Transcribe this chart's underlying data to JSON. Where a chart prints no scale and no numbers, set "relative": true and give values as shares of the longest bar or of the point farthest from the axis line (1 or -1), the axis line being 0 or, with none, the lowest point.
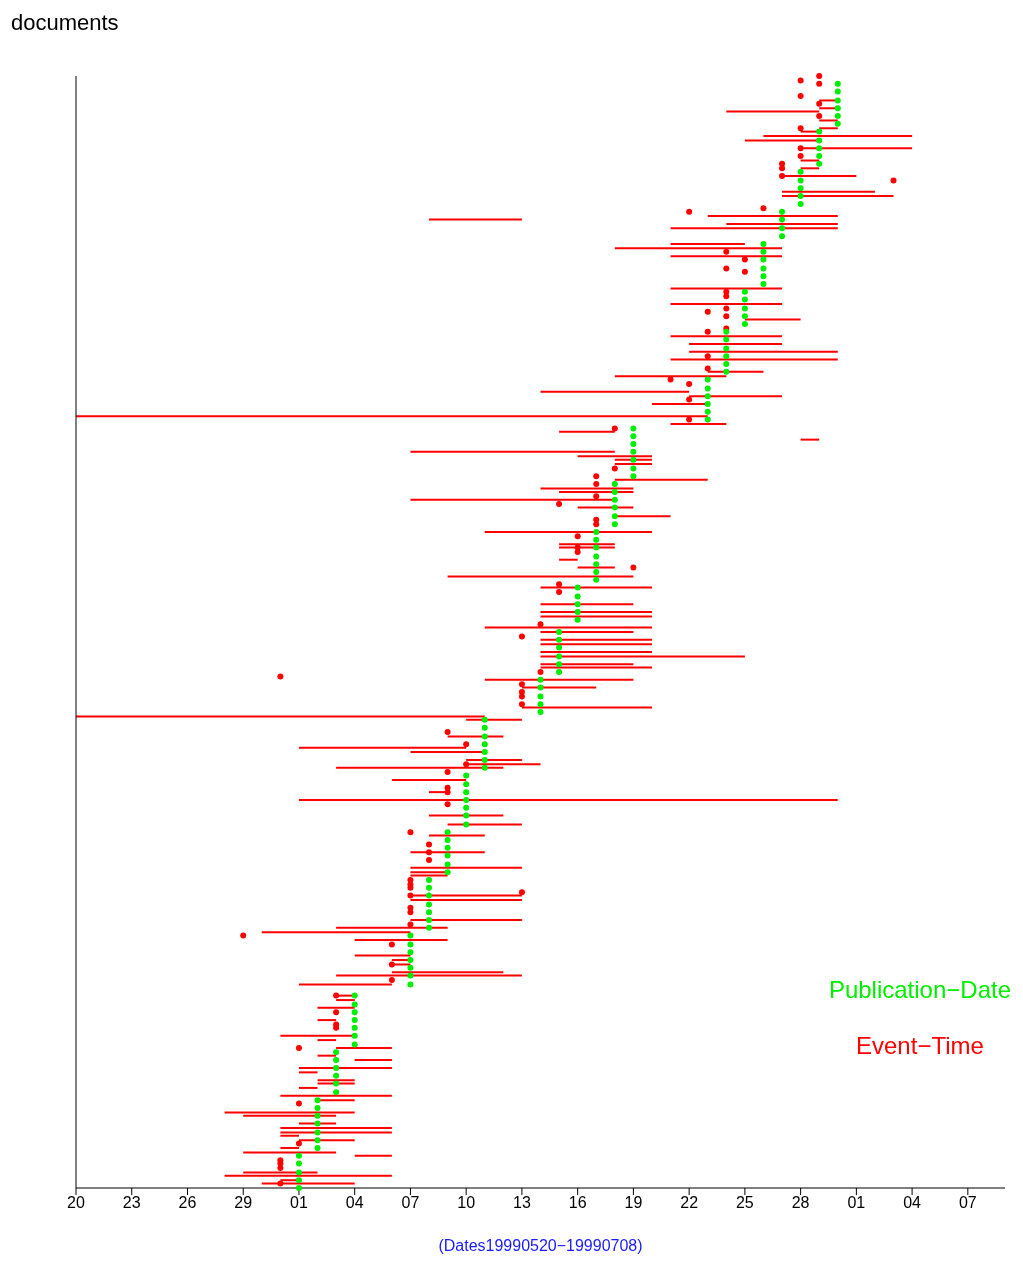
{
  "chart_data": {
    "type": "scatter",
    "ylabel": "documents",
    "xlabel": "(Dates19990520−19990708)",
    "xlim": [
      "1999-05-20",
      "1999-07-09"
    ],
    "relative": true,
    "xticks": [
      {
        "value": "1999-05-20",
        "label": "20"
      },
      {
        "value": "1999-05-23",
        "label": "23"
      },
      {
        "value": "1999-05-26",
        "label": "26"
      },
      {
        "value": "1999-05-29",
        "label": "29"
      },
      {
        "value": "1999-06-01",
        "label": "01"
      },
      {
        "value": "1999-06-04",
        "label": "04"
      },
      {
        "value": "1999-06-07",
        "label": "07"
      },
      {
        "value": "1999-06-10",
        "label": "10"
      },
      {
        "value": "1999-06-13",
        "label": "13"
      },
      {
        "value": "1999-06-16",
        "label": "16"
      },
      {
        "value": "1999-06-19",
        "label": "19"
      },
      {
        "value": "1999-06-22",
        "label": "22"
      },
      {
        "value": "1999-06-25",
        "label": "25"
      },
      {
        "value": "1999-06-28",
        "label": "28"
      },
      {
        "value": "1999-07-01",
        "label": "01"
      },
      {
        "value": "1999-07-04",
        "label": "04"
      },
      {
        "value": "1999-07-07",
        "label": "07"
      }
    ],
    "tick_labels": "x",
    "legend": "bottom right",
    "marker": "none",
    "series": [
      {
        "name": "Event−Time",
        "type": "line",
        "color": "#ff0000",
        "x": [
          "1999-06-24",
          "1999-06-29"
        ],
        "values": [
          0.968,
          0.968
        ]
      },
      {
        "type": "line",
        "color": "#ff0000",
        "x": [
          "1999-06-26",
          "1999-07-04"
        ],
        "values": [
          0.946,
          0.946
        ]
      },
      {
        "type": "line",
        "color": "#ff0000",
        "x": [
          "1999-06-25",
          "1999-06-29"
        ],
        "values": [
          0.942,
          0.942
        ]
      },
      {
        "type": "line",
        "color": "#ff0000",
        "x": [
          "1999-06-28",
          "1999-07-04"
        ],
        "values": [
          0.935,
          0.935
        ]
      },
      {
        "type": "line",
        "color": "#ff0000",
        "x": [
          "1999-06-29",
          "1999-06-30"
        ],
        "values": [
          0.978,
          0.978
        ]
      },
      {
        "type": "line",
        "color": "#ff0000",
        "x": [
          "1999-06-29",
          "1999-06-30"
        ],
        "values": [
          0.971,
          0.971
        ]
      },
      {
        "type": "line",
        "color": "#ff0000",
        "x": [
          "1999-06-29",
          "1999-06-30"
        ],
        "values": [
          0.96,
          0.96
        ]
      },
      {
        "type": "line",
        "color": "#ff0000",
        "x": [
          "1999-06-29",
          "1999-06-30"
        ],
        "values": [
          0.953,
          0.953
        ]
      },
      {
        "type": "line",
        "color": "#ff0000",
        "x": [
          "1999-06-28",
          "1999-06-29"
        ],
        "values": [
          0.95,
          0.95
        ]
      },
      {
        "type": "line",
        "color": "#ff0000",
        "x": [
          "1999-06-28",
          "1999-06-29"
        ],
        "values": [
          0.924,
          0.924
        ]
      },
      {
        "type": "line",
        "color": "#ff0000",
        "x": [
          "1999-06-28",
          "1999-06-29"
        ],
        "values": [
          0.917,
          0.917
        ]
      },
      {
        "type": "line",
        "color": "#ff0000",
        "x": [
          "1999-06-27",
          "1999-07-01"
        ],
        "values": [
          0.91,
          0.91
        ]
      },
      {
        "type": "line",
        "color": "#ff0000",
        "x": [
          "1999-06-27",
          "1999-07-02"
        ],
        "values": [
          0.896,
          0.896
        ]
      },
      {
        "type": "line",
        "color": "#ff0000",
        "x": [
          "1999-06-27",
          "1999-07-03"
        ],
        "values": [
          0.892,
          0.892
        ]
      },
      {
        "type": "line",
        "color": "#ff0000",
        "x": [
          "1999-06-08",
          "1999-06-13"
        ],
        "values": [
          0.871,
          0.871
        ]
      },
      {
        "type": "line",
        "color": "#ff0000",
        "x": [
          "1999-06-23",
          "1999-06-30"
        ],
        "values": [
          0.874,
          0.874
        ]
      },
      {
        "type": "line",
        "color": "#ff0000",
        "x": [
          "1999-06-24",
          "1999-06-30"
        ],
        "values": [
          0.867,
          0.867
        ]
      },
      {
        "type": "line",
        "color": "#ff0000",
        "x": [
          "1999-06-21",
          "1999-06-30"
        ],
        "values": [
          0.863,
          0.863
        ]
      },
      {
        "type": "line",
        "color": "#ff0000",
        "x": [
          "1999-06-21",
          "1999-06-25"
        ],
        "values": [
          0.849,
          0.849
        ]
      },
      {
        "type": "line",
        "color": "#ff0000",
        "x": [
          "1999-06-18",
          "1999-06-27"
        ],
        "values": [
          0.845,
          0.845
        ]
      },
      {
        "type": "line",
        "color": "#ff0000",
        "x": [
          "1999-06-21",
          "1999-06-27"
        ],
        "values": [
          0.838,
          0.838
        ]
      },
      {
        "type": "line",
        "color": "#ff0000",
        "x": [
          "1999-06-21",
          "1999-06-27"
        ],
        "values": [
          0.809,
          0.809
        ]
      },
      {
        "type": "line",
        "color": "#ff0000",
        "x": [
          "1999-06-21",
          "1999-06-27"
        ],
        "values": [
          0.795,
          0.795
        ]
      },
      {
        "type": "line",
        "color": "#ff0000",
        "x": [
          "1999-06-25",
          "1999-06-28"
        ],
        "values": [
          0.781,
          0.781
        ]
      },
      {
        "type": "line",
        "color": "#ff0000",
        "x": [
          "1999-06-21",
          "1999-06-27"
        ],
        "values": [
          0.766,
          0.766
        ]
      },
      {
        "type": "line",
        "color": "#ff0000",
        "x": [
          "1999-06-22",
          "1999-06-27"
        ],
        "values": [
          0.759,
          0.759
        ]
      },
      {
        "type": "line",
        "color": "#ff0000",
        "x": [
          "1999-06-22",
          "1999-06-30"
        ],
        "values": [
          0.752,
          0.752
        ]
      },
      {
        "type": "line",
        "color": "#ff0000",
        "x": [
          "1999-06-21",
          "1999-06-30"
        ],
        "values": [
          0.745,
          0.745
        ]
      },
      {
        "type": "line",
        "color": "#ff0000",
        "x": [
          "1999-06-23",
          "1999-06-26"
        ],
        "values": [
          0.734,
          0.734
        ]
      },
      {
        "type": "line",
        "color": "#ff0000",
        "x": [
          "1999-06-18",
          "1999-06-24"
        ],
        "values": [
          0.73,
          0.73
        ]
      },
      {
        "type": "line",
        "color": "#ff0000",
        "x": [
          "1999-06-14",
          "1999-06-22"
        ],
        "values": [
          0.716,
          0.716
        ]
      },
      {
        "type": "line",
        "color": "#ff0000",
        "x": [
          "1999-06-22",
          "1999-06-27"
        ],
        "values": [
          0.712,
          0.712
        ]
      },
      {
        "type": "line",
        "color": "#ff0000",
        "x": [
          "1999-06-20",
          "1999-06-23"
        ],
        "values": [
          0.705,
          0.705
        ]
      },
      {
        "type": "line",
        "color": "#ff0000",
        "x": [
          "1999-05-20",
          "1999-06-23"
        ],
        "values": [
          0.694,
          0.694
        ]
      },
      {
        "type": "line",
        "color": "#ff0000",
        "x": [
          "1999-06-21",
          "1999-06-24"
        ],
        "values": [
          0.687,
          0.687
        ]
      },
      {
        "type": "line",
        "color": "#ff0000",
        "x": [
          "1999-06-15",
          "1999-06-18"
        ],
        "values": [
          0.68,
          0.68
        ]
      },
      {
        "type": "line",
        "color": "#ff0000",
        "x": [
          "1999-06-28",
          "1999-06-29"
        ],
        "values": [
          0.673,
          0.673
        ]
      },
      {
        "type": "line",
        "color": "#ff0000",
        "x": [
          "1999-06-07",
          "1999-06-18"
        ],
        "values": [
          0.662,
          0.662
        ]
      },
      {
        "type": "line",
        "color": "#ff0000",
        "x": [
          "1999-06-16",
          "1999-06-20"
        ],
        "values": [
          0.658,
          0.658
        ]
      },
      {
        "type": "line",
        "color": "#ff0000",
        "x": [
          "1999-06-18",
          "1999-06-20"
        ],
        "values": [
          0.655,
          0.655
        ]
      },
      {
        "type": "line",
        "color": "#ff0000",
        "x": [
          "1999-06-18",
          "1999-06-20"
        ],
        "values": [
          0.651,
          0.651
        ]
      },
      {
        "type": "line",
        "color": "#ff0000",
        "x": [
          "1999-06-18",
          "1999-06-23"
        ],
        "values": [
          0.637,
          0.637
        ]
      },
      {
        "type": "line",
        "color": "#ff0000",
        "x": [
          "1999-06-14",
          "1999-06-19"
        ],
        "values": [
          0.629,
          0.629
        ]
      },
      {
        "type": "line",
        "color": "#ff0000",
        "x": [
          "1999-06-15",
          "1999-06-19"
        ],
        "values": [
          0.626,
          0.626
        ]
      },
      {
        "type": "line",
        "color": "#ff0000",
        "x": [
          "1999-06-07",
          "1999-06-18"
        ],
        "values": [
          0.619,
          0.619
        ]
      },
      {
        "type": "line",
        "color": "#ff0000",
        "x": [
          "1999-06-16",
          "1999-06-19"
        ],
        "values": [
          0.612,
          0.612
        ]
      },
      {
        "type": "line",
        "color": "#ff0000",
        "x": [
          "1999-06-18",
          "1999-06-21"
        ],
        "values": [
          0.604,
          0.604
        ]
      },
      {
        "type": "line",
        "color": "#ff0000",
        "x": [
          "1999-06-11",
          "1999-06-20"
        ],
        "values": [
          0.59,
          0.59
        ]
      },
      {
        "type": "line",
        "color": "#ff0000",
        "x": [
          "1999-06-15",
          "1999-06-18"
        ],
        "values": [
          0.579,
          0.579
        ]
      },
      {
        "type": "line",
        "color": "#ff0000",
        "x": [
          "1999-06-15",
          "1999-06-18"
        ],
        "values": [
          0.576,
          0.576
        ]
      },
      {
        "type": "line",
        "color": "#ff0000",
        "x": [
          "1999-06-15",
          "1999-06-16"
        ],
        "values": [
          0.565,
          0.565
        ]
      },
      {
        "type": "line",
        "color": "#ff0000",
        "x": [
          "1999-06-16",
          "1999-06-18"
        ],
        "values": [
          0.558,
          0.558
        ]
      },
      {
        "type": "line",
        "color": "#ff0000",
        "x": [
          "1999-06-09",
          "1999-06-19"
        ],
        "values": [
          0.55,
          0.55
        ]
      },
      {
        "type": "line",
        "color": "#ff0000",
        "x": [
          "1999-06-14",
          "1999-06-20"
        ],
        "values": [
          0.54,
          0.54
        ]
      },
      {
        "type": "line",
        "color": "#ff0000",
        "x": [
          "1999-06-14",
          "1999-06-19"
        ],
        "values": [
          0.525,
          0.525
        ]
      },
      {
        "type": "line",
        "color": "#ff0000",
        "x": [
          "1999-06-14",
          "1999-06-20"
        ],
        "values": [
          0.518,
          0.518
        ]
      },
      {
        "type": "line",
        "color": "#ff0000",
        "x": [
          "1999-06-14",
          "1999-06-20"
        ],
        "values": [
          0.514,
          0.514
        ]
      },
      {
        "type": "line",
        "color": "#ff0000",
        "x": [
          "1999-06-11",
          "1999-06-20"
        ],
        "values": [
          0.504,
          0.504
        ]
      },
      {
        "type": "line",
        "color": "#ff0000",
        "x": [
          "1999-06-14",
          "1999-06-19"
        ],
        "values": [
          0.5,
          0.5
        ]
      },
      {
        "type": "line",
        "color": "#ff0000",
        "x": [
          "1999-06-14",
          "1999-06-20"
        ],
        "values": [
          0.493,
          0.493
        ]
      },
      {
        "type": "line",
        "color": "#ff0000",
        "x": [
          "1999-06-14",
          "1999-06-20"
        ],
        "values": [
          0.489,
          0.489
        ]
      },
      {
        "type": "line",
        "color": "#ff0000",
        "x": [
          "1999-06-14",
          "1999-06-20"
        ],
        "values": [
          0.482,
          0.482
        ]
      },
      {
        "type": "line",
        "color": "#ff0000",
        "x": [
          "1999-06-14",
          "1999-06-25"
        ],
        "values": [
          0.478,
          0.478
        ]
      },
      {
        "type": "line",
        "color": "#ff0000",
        "x": [
          "1999-06-14",
          "1999-06-19"
        ],
        "values": [
          0.471,
          0.471
        ]
      },
      {
        "type": "line",
        "color": "#ff0000",
        "x": [
          "1999-06-14",
          "1999-06-20"
        ],
        "values": [
          0.468,
          0.468
        ]
      },
      {
        "type": "line",
        "color": "#ff0000",
        "x": [
          "1999-06-11",
          "1999-06-19"
        ],
        "values": [
          0.457,
          0.457
        ]
      },
      {
        "type": "line",
        "color": "#ff0000",
        "x": [
          "1999-06-13",
          "1999-06-17"
        ],
        "values": [
          0.45,
          0.45
        ]
      },
      {
        "type": "line",
        "color": "#ff0000",
        "x": [
          "1999-06-13",
          "1999-06-20"
        ],
        "values": [
          0.432,
          0.432
        ]
      },
      {
        "type": "line",
        "color": "#ff0000",
        "x": [
          "1999-05-20",
          "1999-06-11"
        ],
        "values": [
          0.424,
          0.424
        ]
      },
      {
        "type": "line",
        "color": "#ff0000",
        "x": [
          "1999-06-10",
          "1999-06-13"
        ],
        "values": [
          0.421,
          0.421
        ]
      },
      {
        "type": "line",
        "color": "#ff0000",
        "x": [
          "1999-06-09",
          "1999-06-12"
        ],
        "values": [
          0.406,
          0.406
        ]
      },
      {
        "type": "line",
        "color": "#ff0000",
        "x": [
          "1999-06-01",
          "1999-06-10"
        ],
        "values": [
          0.396,
          0.396
        ]
      },
      {
        "type": "line",
        "color": "#ff0000",
        "x": [
          "1999-06-07",
          "1999-06-11"
        ],
        "values": [
          0.392,
          0.392
        ]
      },
      {
        "type": "line",
        "color": "#ff0000",
        "x": [
          "1999-06-10",
          "1999-06-13"
        ],
        "values": [
          0.385,
          0.385
        ]
      },
      {
        "type": "line",
        "color": "#ff0000",
        "x": [
          "1999-06-10",
          "1999-06-14"
        ],
        "values": [
          0.381,
          0.381
        ]
      },
      {
        "type": "line",
        "color": "#ff0000",
        "x": [
          "1999-06-03",
          "1999-06-12"
        ],
        "values": [
          0.378,
          0.378
        ]
      },
      {
        "type": "line",
        "color": "#ff0000",
        "x": [
          "1999-06-06",
          "1999-06-10"
        ],
        "values": [
          0.367,
          0.367
        ]
      },
      {
        "type": "line",
        "color": "#ff0000",
        "x": [
          "1999-06-08",
          "1999-06-09"
        ],
        "values": [
          0.356,
          0.356
        ]
      },
      {
        "type": "line",
        "color": "#ff0000",
        "x": [
          "1999-06-01",
          "1999-06-30"
        ],
        "values": [
          0.349,
          0.349
        ]
      },
      {
        "type": "line",
        "color": "#ff0000",
        "x": [
          "1999-06-08",
          "1999-06-12"
        ],
        "values": [
          0.335,
          0.335
        ]
      },
      {
        "type": "line",
        "color": "#ff0000",
        "x": [
          "1999-06-09",
          "1999-06-13"
        ],
        "values": [
          0.327,
          0.327
        ]
      },
      {
        "type": "line",
        "color": "#ff0000",
        "x": [
          "1999-06-08",
          "1999-06-11"
        ],
        "values": [
          0.317,
          0.317
        ]
      },
      {
        "type": "line",
        "color": "#ff0000",
        "x": [
          "1999-06-07",
          "1999-06-11"
        ],
        "values": [
          0.302,
          0.302
        ]
      },
      {
        "type": "line",
        "color": "#ff0000",
        "x": [
          "1999-06-07",
          "1999-06-13"
        ],
        "values": [
          0.288,
          0.288
        ]
      },
      {
        "type": "line",
        "color": "#ff0000",
        "x": [
          "1999-06-07",
          "1999-06-09"
        ],
        "values": [
          0.284,
          0.284
        ]
      },
      {
        "type": "line",
        "color": "#ff0000",
        "x": [
          "1999-06-07",
          "1999-06-09"
        ],
        "values": [
          0.281,
          0.281
        ]
      },
      {
        "type": "line",
        "color": "#ff0000",
        "x": [
          "1999-06-07",
          "1999-06-13"
        ],
        "values": [
          0.263,
          0.263
        ]
      },
      {
        "type": "line",
        "color": "#ff0000",
        "x": [
          "1999-06-07",
          "1999-06-13"
        ],
        "values": [
          0.259,
          0.259
        ]
      },
      {
        "type": "line",
        "color": "#ff0000",
        "x": [
          "1999-06-07",
          "1999-06-13"
        ],
        "values": [
          0.241,
          0.241
        ]
      },
      {
        "type": "line",
        "color": "#ff0000",
        "x": [
          "1999-06-03",
          "1999-06-09"
        ],
        "values": [
          0.234,
          0.234
        ]
      },
      {
        "type": "line",
        "color": "#ff0000",
        "x": [
          "1999-05-30",
          "1999-06-07"
        ],
        "values": [
          0.23,
          0.23
        ]
      },
      {
        "type": "line",
        "color": "#ff0000",
        "x": [
          "1999-06-04",
          "1999-06-09"
        ],
        "values": [
          0.223,
          0.223
        ]
      },
      {
        "type": "line",
        "color": "#ff0000",
        "x": [
          "1999-06-04",
          "1999-06-07"
        ],
        "values": [
          0.209,
          0.209
        ]
      },
      {
        "type": "line",
        "color": "#ff0000",
        "x": [
          "1999-06-06",
          "1999-06-07"
        ],
        "values": [
          0.205,
          0.205
        ]
      },
      {
        "type": "line",
        "color": "#ff0000",
        "x": [
          "1999-06-06",
          "1999-06-07"
        ],
        "values": [
          0.201,
          0.201
        ]
      },
      {
        "type": "line",
        "color": "#ff0000",
        "x": [
          "1999-06-06",
          "1999-06-12"
        ],
        "values": [
          0.194,
          0.194
        ]
      },
      {
        "type": "line",
        "color": "#ff0000",
        "x": [
          "1999-06-03",
          "1999-06-13"
        ],
        "values": [
          0.191,
          0.191
        ]
      },
      {
        "type": "line",
        "color": "#ff0000",
        "x": [
          "1999-06-01",
          "1999-06-06"
        ],
        "values": [
          0.183,
          0.183
        ]
      },
      {
        "type": "line",
        "color": "#ff0000",
        "x": [
          "1999-06-03",
          "1999-06-04"
        ],
        "values": [
          0.173,
          0.173
        ]
      },
      {
        "type": "line",
        "color": "#ff0000",
        "x": [
          "1999-06-03",
          "1999-06-04"
        ],
        "values": [
          0.169,
          0.169
        ]
      },
      {
        "type": "line",
        "color": "#ff0000",
        "x": [
          "1999-06-02",
          "1999-06-04"
        ],
        "values": [
          0.162,
          0.162
        ]
      },
      {
        "type": "line",
        "color": "#ff0000",
        "x": [
          "1999-06-02",
          "1999-06-03"
        ],
        "values": [
          0.151,
          0.151
        ]
      },
      {
        "type": "line",
        "color": "#ff0000",
        "x": [
          "1999-05-31",
          "1999-06-04"
        ],
        "values": [
          0.137,
          0.137
        ]
      },
      {
        "type": "line",
        "color": "#ff0000",
        "x": [
          "1999-06-02",
          "1999-06-03"
        ],
        "values": [
          0.133,
          0.133
        ]
      },
      {
        "type": "line",
        "color": "#ff0000",
        "x": [
          "1999-06-03",
          "1999-06-06"
        ],
        "values": [
          0.126,
          0.126
        ]
      },
      {
        "type": "line",
        "color": "#ff0000",
        "x": [
          "1999-06-02",
          "1999-06-03"
        ],
        "values": [
          0.119,
          0.119
        ]
      },
      {
        "type": "line",
        "color": "#ff0000",
        "x": [
          "1999-06-04",
          "1999-06-06"
        ],
        "values": [
          0.115,
          0.115
        ]
      },
      {
        "type": "line",
        "color": "#ff0000",
        "x": [
          "1999-06-01",
          "1999-06-06"
        ],
        "values": [
          0.108,
          0.108
        ]
      },
      {
        "type": "line",
        "color": "#ff0000",
        "x": [
          "1999-06-01",
          "1999-06-02"
        ],
        "values": [
          0.104,
          0.104
        ]
      },
      {
        "type": "line",
        "color": "#ff0000",
        "x": [
          "1999-06-02",
          "1999-06-04"
        ],
        "values": [
          0.097,
          0.097
        ]
      },
      {
        "type": "line",
        "color": "#ff0000",
        "x": [
          "1999-06-02",
          "1999-06-04"
        ],
        "values": [
          0.094,
          0.094
        ]
      },
      {
        "type": "line",
        "color": "#ff0000",
        "x": [
          "1999-06-01",
          "1999-06-02"
        ],
        "values": [
          0.09,
          0.09
        ]
      },
      {
        "type": "line",
        "color": "#ff0000",
        "x": [
          "1999-05-31",
          "1999-06-06"
        ],
        "values": [
          0.083,
          0.083
        ]
      },
      {
        "type": "line",
        "color": "#ff0000",
        "x": [
          "1999-06-02",
          "1999-06-04"
        ],
        "values": [
          0.079,
          0.079
        ]
      },
      {
        "type": "line",
        "color": "#ff0000",
        "x": [
          "1999-05-28",
          "1999-06-04"
        ],
        "values": [
          0.068,
          0.068
        ]
      },
      {
        "type": "line",
        "color": "#ff0000",
        "x": [
          "1999-05-29",
          "1999-06-03"
        ],
        "values": [
          0.065,
          0.065
        ]
      },
      {
        "type": "line",
        "color": "#ff0000",
        "x": [
          "1999-06-01",
          "1999-06-03"
        ],
        "values": [
          0.058,
          0.058
        ]
      },
      {
        "type": "line",
        "color": "#ff0000",
        "x": [
          "1999-05-31",
          "1999-06-06"
        ],
        "values": [
          0.054,
          0.054
        ]
      },
      {
        "type": "line",
        "color": "#ff0000",
        "x": [
          "1999-05-31",
          "1999-06-06"
        ],
        "values": [
          0.05,
          0.05
        ]
      },
      {
        "type": "line",
        "color": "#ff0000",
        "x": [
          "1999-05-31",
          "1999-06-01"
        ],
        "values": [
          0.047,
          0.047
        ]
      },
      {
        "type": "line",
        "color": "#ff0000",
        "x": [
          "1999-06-01",
          "1999-06-04"
        ],
        "values": [
          0.043,
          0.043
        ]
      },
      {
        "type": "line",
        "color": "#ff0000",
        "x": [
          "1999-05-31",
          "1999-06-01"
        ],
        "values": [
          0.036,
          0.036
        ]
      },
      {
        "type": "line",
        "color": "#ff0000",
        "x": [
          "1999-05-29",
          "1999-06-03"
        ],
        "values": [
          0.032,
          0.032
        ]
      },
      {
        "type": "line",
        "color": "#ff0000",
        "x": [
          "1999-06-04",
          "1999-06-06"
        ],
        "values": [
          0.029,
          0.029
        ]
      },
      {
        "type": "line",
        "color": "#ff0000",
        "x": [
          "1999-05-29",
          "1999-06-02"
        ],
        "values": [
          0.014,
          0.014
        ]
      },
      {
        "type": "line",
        "color": "#ff0000",
        "x": [
          "1999-05-28",
          "1999-06-06"
        ],
        "values": [
          0.011,
          0.011
        ]
      },
      {
        "type": "line",
        "color": "#ff0000",
        "x": [
          "1999-05-31",
          "1999-06-01"
        ],
        "values": [
          0.007,
          0.007
        ]
      },
      {
        "type": "line",
        "color": "#ff0000",
        "x": [
          "1999-05-30",
          "1999-06-04"
        ],
        "values": [
          0.004,
          0.004
        ]
      },
      {
        "marker": "circle",
        "color": "#ff0000",
        "x": [
          "1999-06-28",
          "1999-06-29",
          "1999-06-29",
          "1999-06-28",
          "1999-06-29",
          "1999-06-29",
          "1999-06-28",
          "1999-06-28",
          "1999-06-28",
          "1999-06-27",
          "1999-06-27",
          "1999-06-27",
          "1999-07-03",
          "1999-06-22",
          "1999-06-26",
          "1999-06-24",
          "1999-06-25",
          "1999-06-24",
          "1999-06-25",
          "1999-06-24",
          "1999-06-24",
          "1999-06-24",
          "1999-06-23",
          "1999-06-24",
          "1999-06-24",
          "1999-06-23",
          "1999-06-23",
          "1999-06-23",
          "1999-06-21",
          "1999-06-22",
          "1999-06-22",
          "1999-06-22",
          "1999-06-18",
          "1999-06-18",
          "1999-06-17",
          "1999-06-17",
          "1999-06-17",
          "1999-06-15",
          "1999-06-17",
          "1999-06-17",
          "1999-06-16",
          "1999-06-16",
          "1999-06-16",
          "1999-06-19",
          "1999-06-15",
          "1999-06-15",
          "1999-06-14",
          "1999-06-13",
          "1999-06-14",
          "1999-06-13",
          "1999-06-13",
          "1999-06-13",
          "1999-06-13",
          "1999-05-31",
          "1999-06-09",
          "1999-06-10",
          "1999-06-10",
          "1999-06-09",
          "1999-06-09",
          "1999-06-09",
          "1999-06-09",
          "1999-06-07",
          "1999-06-08",
          "1999-06-08",
          "1999-06-08",
          "1999-06-07",
          "1999-06-07",
          "1999-06-07",
          "1999-06-07",
          "1999-06-07",
          "1999-06-13",
          "1999-05-29",
          "1999-06-07",
          "1999-06-07",
          "1999-06-06",
          "1999-06-06",
          "1999-06-06",
          "1999-06-03",
          "1999-06-03",
          "1999-06-03",
          "1999-06-03",
          "1999-06-01",
          "1999-06-01",
          "1999-06-01",
          "1999-05-31",
          "1999-05-31",
          "1999-05-31",
          "1999-05-31"
        ],
        "values": [
          0.996,
          1,
          0.993,
          0.982,
          0.975,
          0.964,
          0.953,
          0.935,
          0.928,
          0.921,
          0.917,
          0.91,
          0.906,
          0.878,
          0.881,
          0.842,
          0.835,
          0.827,
          0.824,
          0.806,
          0.802,
          0.791,
          0.788,
          0.784,
          0.773,
          0.77,
          0.748,
          0.737,
          0.727,
          0.723,
          0.709,
          0.691,
          0.683,
          0.647,
          0.64,
          0.633,
          0.622,
          0.615,
          0.601,
          0.597,
          0.586,
          0.576,
          0.572,
          0.558,
          0.543,
          0.536,
          0.507,
          0.496,
          0.464,
          0.453,
          0.446,
          0.442,
          0.435,
          0.46,
          0.41,
          0.399,
          0.381,
          0.374,
          0.36,
          0.356,
          0.345,
          0.32,
          0.309,
          0.302,
          0.295,
          0.277,
          0.273,
          0.27,
          0.263,
          0.248,
          0.266,
          0.227,
          0.252,
          0.237,
          0.219,
          0.201,
          0.187,
          0.173,
          0.158,
          0.147,
          0.144,
          0.126,
          0.076,
          0.04,
          0.025,
          0.022,
          0.018,
          0.004
        ]
      },
      {
        "name": "Publication−Date",
        "marker": "circle",
        "color": "#00ee00",
        "x": [
          "1999-06-01",
          "1999-06-01",
          "1999-06-01",
          "1999-06-01",
          "1999-06-01",
          "1999-06-02",
          "1999-06-02",
          "1999-06-02",
          "1999-06-02",
          "1999-06-02",
          "1999-06-02",
          "1999-06-02",
          "1999-06-03",
          "1999-06-03",
          "1999-06-03",
          "1999-06-03",
          "1999-06-03",
          "1999-06-03",
          "1999-06-04",
          "1999-06-04",
          "1999-06-04",
          "1999-06-04",
          "1999-06-04",
          "1999-06-04",
          "1999-06-04",
          "1999-06-07",
          "1999-06-07",
          "1999-06-07",
          "1999-06-07",
          "1999-06-07",
          "1999-06-07",
          "1999-06-07",
          "1999-06-08",
          "1999-06-08",
          "1999-06-08",
          "1999-06-08",
          "1999-06-08",
          "1999-06-08",
          "1999-06-08",
          "1999-06-09",
          "1999-06-09",
          "1999-06-09",
          "1999-06-09",
          "1999-06-09",
          "1999-06-09",
          "1999-06-10",
          "1999-06-10",
          "1999-06-10",
          "1999-06-10",
          "1999-06-10",
          "1999-06-10",
          "1999-06-10",
          "1999-06-11",
          "1999-06-11",
          "1999-06-11",
          "1999-06-11",
          "1999-06-11",
          "1999-06-11",
          "1999-06-11",
          "1999-06-14",
          "1999-06-14",
          "1999-06-14",
          "1999-06-14",
          "1999-06-14",
          "1999-06-15",
          "1999-06-15",
          "1999-06-15",
          "1999-06-15",
          "1999-06-15",
          "1999-06-15",
          "1999-06-16",
          "1999-06-16",
          "1999-06-16",
          "1999-06-16",
          "1999-06-16",
          "1999-06-17",
          "1999-06-17",
          "1999-06-17",
          "1999-06-17",
          "1999-06-17",
          "1999-06-17",
          "1999-06-17",
          "1999-06-18",
          "1999-06-18",
          "1999-06-18",
          "1999-06-18",
          "1999-06-18",
          "1999-06-18",
          "1999-06-19",
          "1999-06-19",
          "1999-06-19",
          "1999-06-19",
          "1999-06-19",
          "1999-06-19",
          "1999-06-19",
          "1999-06-23",
          "1999-06-23",
          "1999-06-23",
          "1999-06-23",
          "1999-06-23",
          "1999-06-23",
          "1999-06-24",
          "1999-06-24",
          "1999-06-24",
          "1999-06-24",
          "1999-06-24",
          "1999-06-24",
          "1999-06-25",
          "1999-06-25",
          "1999-06-25",
          "1999-06-25",
          "1999-06-25",
          "1999-06-26",
          "1999-06-26",
          "1999-06-26",
          "1999-06-26",
          "1999-06-26",
          "1999-06-26",
          "1999-06-27",
          "1999-06-27",
          "1999-06-27",
          "1999-06-27",
          "1999-06-28",
          "1999-06-28",
          "1999-06-28",
          "1999-06-28",
          "1999-06-28",
          "1999-06-29",
          "1999-06-29",
          "1999-06-29",
          "1999-06-29",
          "1999-06-29",
          "1999-06-30",
          "1999-06-30",
          "1999-06-30",
          "1999-06-30",
          "1999-06-30",
          "1999-06-30"
        ],
        "values": [
          0,
          0.007,
          0.014,
          0.022,
          0.029,
          0.036,
          0.043,
          0.05,
          0.058,
          0.065,
          0.072,
          0.079,
          0.086,
          0.094,
          0.101,
          0.108,
          0.115,
          0.122,
          0.129,
          0.137,
          0.144,
          0.151,
          0.158,
          0.165,
          0.173,
          0.183,
          0.191,
          0.198,
          0.205,
          0.212,
          0.219,
          0.227,
          0.234,
          0.241,
          0.248,
          0.255,
          0.263,
          0.27,
          0.277,
          0.284,
          0.291,
          0.299,
          0.306,
          0.313,
          0.32,
          0.327,
          0.335,
          0.342,
          0.349,
          0.356,
          0.363,
          0.371,
          0.378,
          0.385,
          0.392,
          0.399,
          0.406,
          0.414,
          0.421,
          0.428,
          0.435,
          0.442,
          0.45,
          0.457,
          0.464,
          0.471,
          0.478,
          0.486,
          0.493,
          0.5,
          0.511,
          0.518,
          0.525,
          0.532,
          0.54,
          0.547,
          0.554,
          0.561,
          0.568,
          0.576,
          0.583,
          0.59,
          0.597,
          0.604,
          0.612,
          0.619,
          0.626,
          0.633,
          0.64,
          0.647,
          0.655,
          0.662,
          0.669,
          0.676,
          0.683,
          0.691,
          0.698,
          0.705,
          0.712,
          0.719,
          0.727,
          0.734,
          0.741,
          0.748,
          0.755,
          0.763,
          0.77,
          0.777,
          0.784,
          0.791,
          0.799,
          0.806,
          0.813,
          0.82,
          0.827,
          0.835,
          0.842,
          0.849,
          0.856,
          0.863,
          0.871,
          0.878,
          0.885,
          0.892,
          0.899,
          0.906,
          0.914,
          0.921,
          0.928,
          0.935,
          0.942,
          0.95,
          0.957,
          0.964,
          0.971,
          0.978,
          0.986,
          0.993
        ]
      }
    ]
  }
}
